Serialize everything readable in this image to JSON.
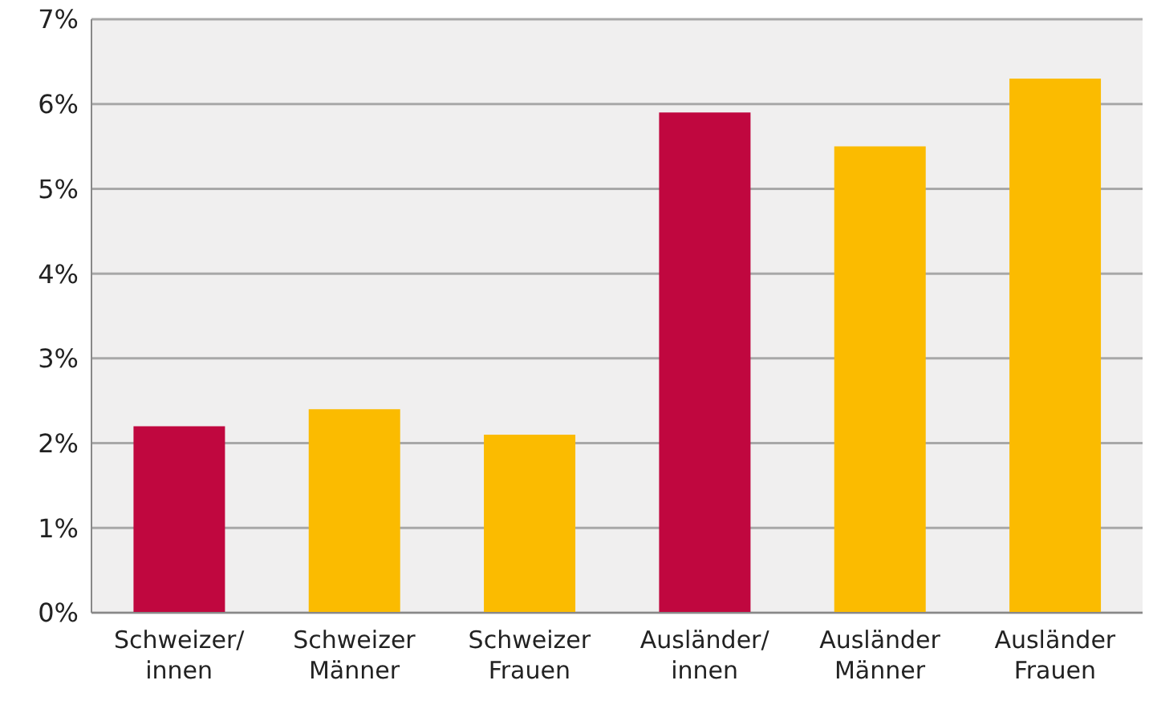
{
  "chart_data": {
    "type": "bar",
    "categories": [
      "Schweizer/\ninnen",
      "Schweizer\nMänner",
      "Schweizer\nFrauen",
      "Ausländer/\ninnen",
      "Ausländer\nMänner",
      "Ausländer\nFrauen"
    ],
    "values": [
      2.2,
      2.4,
      2.1,
      5.9,
      5.5,
      6.3
    ],
    "colors": [
      "#c0073f",
      "#fbbb00",
      "#fbbb00",
      "#c0073f",
      "#fbbb00",
      "#fbbb00"
    ],
    "ylim": [
      0,
      7
    ],
    "yticks": [
      {
        "value": 0,
        "label": "0%"
      },
      {
        "value": 1,
        "label": "1%"
      },
      {
        "value": 2,
        "label": "2%"
      },
      {
        "value": 3,
        "label": "3%"
      },
      {
        "value": 4,
        "label": "4%"
      },
      {
        "value": 5,
        "label": "5%"
      },
      {
        "value": 6,
        "label": "6%"
      },
      {
        "value": 7,
        "label": "7%"
      }
    ],
    "grid": "y"
  }
}
